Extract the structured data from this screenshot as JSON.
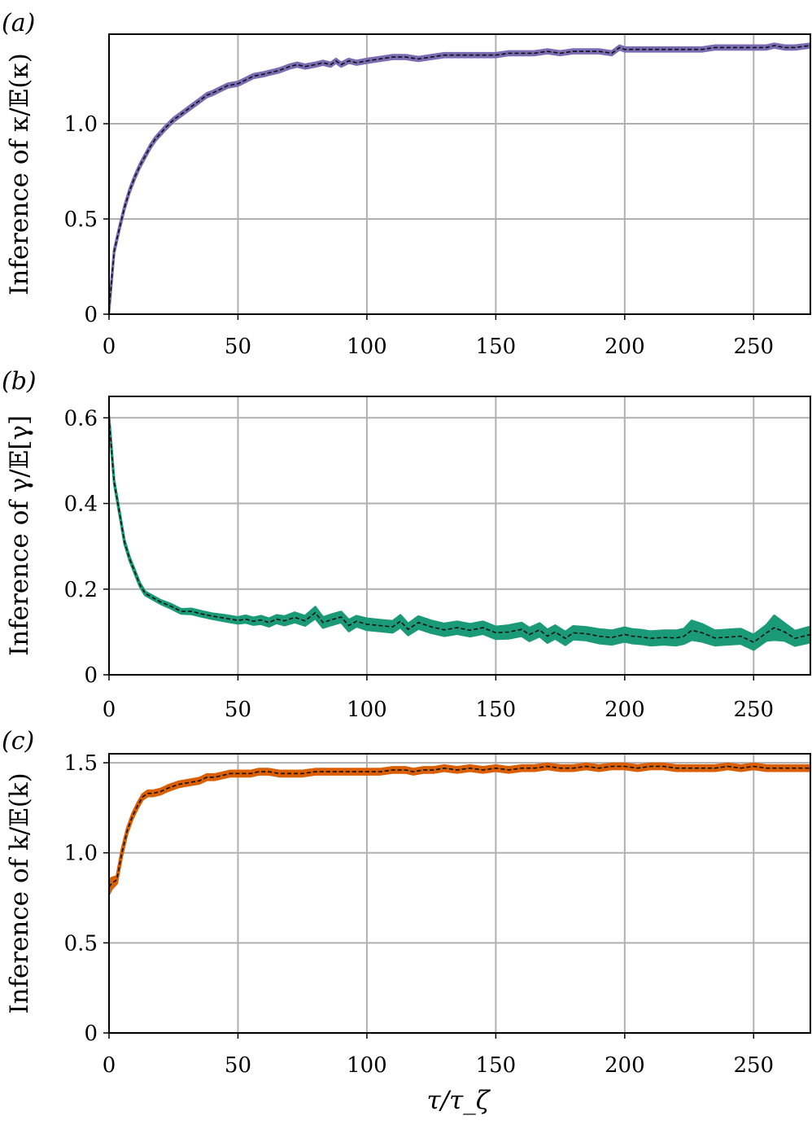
{
  "chart_data": [
    {
      "type": "line",
      "panel_label": "(a)",
      "ylabel": "Inference of κ/𝔼(κ)",
      "xlabel": "",
      "xlim": [
        0,
        272
      ],
      "ylim": [
        0,
        1.47
      ],
      "xticks": [
        "0",
        "50",
        "100",
        "150",
        "200",
        "250"
      ],
      "xtick_values": [
        0,
        50,
        100,
        150,
        200,
        250
      ],
      "yticks": [
        "0",
        "0.5",
        "1.0"
      ],
      "ytick_values": [
        0,
        0.5,
        1.0
      ],
      "grid": true,
      "band_color": "#7b6bb3",
      "x": [
        0,
        2,
        4,
        6,
        8,
        10,
        12,
        14,
        16,
        18,
        20,
        22,
        25,
        28,
        31,
        35,
        38,
        40,
        43,
        46,
        50,
        53,
        56,
        60,
        63,
        66,
        70,
        73,
        76,
        80,
        83,
        86,
        88,
        90,
        93,
        96,
        100,
        105,
        110,
        115,
        120,
        125,
        130,
        135,
        140,
        145,
        150,
        155,
        160,
        165,
        170,
        175,
        180,
        185,
        190,
        195,
        198,
        200,
        205,
        210,
        215,
        220,
        225,
        230,
        235,
        240,
        245,
        250,
        255,
        258,
        262,
        266,
        272
      ],
      "y": [
        0.02,
        0.33,
        0.45,
        0.56,
        0.65,
        0.72,
        0.78,
        0.83,
        0.88,
        0.92,
        0.95,
        0.98,
        1.02,
        1.05,
        1.08,
        1.12,
        1.15,
        1.16,
        1.18,
        1.2,
        1.21,
        1.23,
        1.25,
        1.26,
        1.27,
        1.28,
        1.3,
        1.31,
        1.3,
        1.31,
        1.32,
        1.31,
        1.33,
        1.31,
        1.33,
        1.32,
        1.33,
        1.34,
        1.35,
        1.35,
        1.34,
        1.35,
        1.36,
        1.36,
        1.36,
        1.36,
        1.36,
        1.37,
        1.37,
        1.37,
        1.38,
        1.37,
        1.38,
        1.38,
        1.38,
        1.37,
        1.4,
        1.39,
        1.39,
        1.39,
        1.39,
        1.39,
        1.39,
        1.39,
        1.4,
        1.4,
        1.4,
        1.4,
        1.4,
        1.41,
        1.4,
        1.4,
        1.41
      ],
      "band_halfwidth": [
        0.01,
        0.01,
        0.01,
        0.01,
        0.01,
        0.01,
        0.01,
        0.01,
        0.01,
        0.01,
        0.01,
        0.01,
        0.01,
        0.01,
        0.01,
        0.01,
        0.01,
        0.01,
        0.01,
        0.01,
        0.01,
        0.01,
        0.01,
        0.01,
        0.01,
        0.01,
        0.01,
        0.01,
        0.01,
        0.01,
        0.01,
        0.01,
        0.01,
        0.01,
        0.01,
        0.01,
        0.01,
        0.01,
        0.01,
        0.01,
        0.01,
        0.01,
        0.01,
        0.01,
        0.01,
        0.01,
        0.01,
        0.01,
        0.01,
        0.01,
        0.01,
        0.01,
        0.01,
        0.01,
        0.01,
        0.01,
        0.01,
        0.01,
        0.01,
        0.01,
        0.01,
        0.01,
        0.01,
        0.01,
        0.01,
        0.01,
        0.01,
        0.01,
        0.01,
        0.01,
        0.01,
        0.01,
        0.01
      ]
    },
    {
      "type": "line",
      "panel_label": "(b)",
      "ylabel": "Inference of γ/𝔼[γ]",
      "xlabel": "",
      "xlim": [
        0,
        272
      ],
      "ylim": [
        0,
        0.65
      ],
      "xticks": [
        "0",
        "50",
        "100",
        "150",
        "200",
        "250"
      ],
      "xtick_values": [
        0,
        50,
        100,
        150,
        200,
        250
      ],
      "yticks": [
        "0",
        "0.2",
        "0.4",
        "0.6"
      ],
      "ytick_values": [
        0,
        0.2,
        0.4,
        0.6
      ],
      "grid": true,
      "band_color": "#1b9a77",
      "x": [
        0,
        2,
        4,
        6,
        8,
        10,
        12,
        14,
        17,
        20,
        24,
        28,
        32,
        36,
        40,
        45,
        50,
        53,
        56,
        59,
        62,
        65,
        68,
        72,
        76,
        80,
        83,
        86,
        90,
        93,
        96,
        100,
        105,
        110,
        113,
        116,
        120,
        125,
        130,
        135,
        140,
        145,
        150,
        155,
        160,
        163,
        167,
        170,
        173,
        177,
        180,
        185,
        190,
        195,
        200,
        203,
        207,
        210,
        215,
        220,
        223,
        226,
        230,
        235,
        240,
        245,
        250,
        255,
        258,
        262,
        266,
        272
      ],
      "y": [
        0.6,
        0.45,
        0.38,
        0.31,
        0.27,
        0.24,
        0.21,
        0.19,
        0.18,
        0.17,
        0.16,
        0.148,
        0.148,
        0.142,
        0.137,
        0.132,
        0.127,
        0.13,
        0.125,
        0.128,
        0.122,
        0.13,
        0.126,
        0.134,
        0.126,
        0.145,
        0.122,
        0.128,
        0.135,
        0.115,
        0.125,
        0.118,
        0.115,
        0.112,
        0.125,
        0.106,
        0.122,
        0.112,
        0.105,
        0.11,
        0.104,
        0.11,
        0.098,
        0.1,
        0.106,
        0.094,
        0.105,
        0.09,
        0.1,
        0.085,
        0.098,
        0.096,
        0.09,
        0.087,
        0.094,
        0.09,
        0.088,
        0.085,
        0.087,
        0.086,
        0.09,
        0.104,
        0.098,
        0.086,
        0.088,
        0.09,
        0.076,
        0.098,
        0.11,
        0.1,
        0.085,
        0.094
      ],
      "band_halfwidth": [
        0.004,
        0.004,
        0.004,
        0.004,
        0.004,
        0.004,
        0.004,
        0.004,
        0.004,
        0.004,
        0.005,
        0.005,
        0.006,
        0.006,
        0.006,
        0.007,
        0.007,
        0.008,
        0.008,
        0.009,
        0.009,
        0.009,
        0.01,
        0.011,
        0.011,
        0.013,
        0.012,
        0.012,
        0.012,
        0.013,
        0.012,
        0.013,
        0.013,
        0.013,
        0.014,
        0.013,
        0.014,
        0.014,
        0.014,
        0.014,
        0.014,
        0.014,
        0.014,
        0.015,
        0.015,
        0.015,
        0.015,
        0.015,
        0.015,
        0.015,
        0.015,
        0.015,
        0.016,
        0.016,
        0.016,
        0.016,
        0.016,
        0.016,
        0.016,
        0.017,
        0.017,
        0.022,
        0.02,
        0.017,
        0.017,
        0.017,
        0.017,
        0.018,
        0.028,
        0.02,
        0.017,
        0.018
      ]
    },
    {
      "type": "line",
      "panel_label": "(c)",
      "ylabel": "Inference of k/𝔼(k)",
      "xlabel": "τ/τ_ζ",
      "xlim": [
        0,
        272
      ],
      "ylim": [
        0,
        1.55
      ],
      "xticks": [
        "0",
        "50",
        "100",
        "150",
        "200",
        "250"
      ],
      "xtick_values": [
        0,
        50,
        100,
        150,
        200,
        250
      ],
      "yticks": [
        "0",
        "0.5",
        "1.0",
        "1.5"
      ],
      "ytick_values": [
        0,
        0.5,
        1.0,
        1.5
      ],
      "grid": true,
      "band_color": "#d95f02",
      "x": [
        0,
        1,
        3,
        5,
        7,
        9,
        11,
        13,
        15,
        17,
        20,
        23,
        27,
        31,
        35,
        38,
        41,
        44,
        47,
        50,
        55,
        58,
        62,
        66,
        70,
        75,
        80,
        85,
        90,
        95,
        100,
        105,
        110,
        115,
        118,
        122,
        126,
        130,
        135,
        140,
        145,
        150,
        155,
        160,
        165,
        170,
        175,
        180,
        185,
        190,
        195,
        200,
        205,
        210,
        215,
        220,
        225,
        230,
        235,
        240,
        245,
        250,
        255,
        260,
        265,
        272
      ],
      "y": [
        0.81,
        0.83,
        0.85,
        1.0,
        1.12,
        1.2,
        1.26,
        1.31,
        1.33,
        1.33,
        1.34,
        1.36,
        1.38,
        1.39,
        1.4,
        1.42,
        1.42,
        1.43,
        1.44,
        1.44,
        1.44,
        1.45,
        1.45,
        1.44,
        1.44,
        1.44,
        1.45,
        1.45,
        1.45,
        1.45,
        1.45,
        1.45,
        1.46,
        1.46,
        1.45,
        1.46,
        1.46,
        1.47,
        1.46,
        1.47,
        1.46,
        1.47,
        1.46,
        1.47,
        1.47,
        1.48,
        1.47,
        1.47,
        1.48,
        1.47,
        1.48,
        1.48,
        1.47,
        1.48,
        1.48,
        1.47,
        1.47,
        1.47,
        1.47,
        1.48,
        1.47,
        1.48,
        1.47,
        1.47,
        1.47,
        1.47
      ],
      "band_halfwidth": [
        0.04,
        0.03,
        0.02,
        0.02,
        0.015,
        0.015,
        0.015,
        0.015,
        0.015,
        0.015,
        0.015,
        0.015,
        0.015,
        0.015,
        0.015,
        0.015,
        0.015,
        0.015,
        0.015,
        0.015,
        0.015,
        0.015,
        0.015,
        0.015,
        0.015,
        0.015,
        0.015,
        0.015,
        0.015,
        0.015,
        0.015,
        0.015,
        0.015,
        0.015,
        0.015,
        0.015,
        0.015,
        0.015,
        0.015,
        0.015,
        0.015,
        0.015,
        0.015,
        0.015,
        0.015,
        0.015,
        0.015,
        0.015,
        0.015,
        0.015,
        0.015,
        0.015,
        0.015,
        0.015,
        0.015,
        0.015,
        0.015,
        0.015,
        0.015,
        0.015,
        0.015,
        0.015,
        0.015,
        0.015,
        0.015,
        0.015
      ]
    }
  ]
}
